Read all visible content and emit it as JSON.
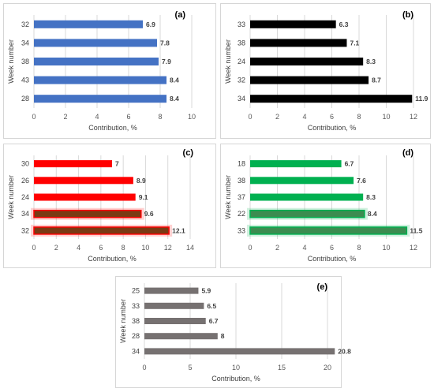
{
  "chart_data": [
    {
      "panel_label": "(a)",
      "type": "bar",
      "orientation": "horizontal",
      "categories": [
        "32",
        "34",
        "38",
        "43",
        "28"
      ],
      "values": [
        6.9,
        7.8,
        7.9,
        8.4,
        8.4
      ],
      "value_labels": [
        "6.9",
        "7.8",
        "7.9",
        "8.4",
        "8.4"
      ],
      "xlabel": "Contribution, %",
      "ylabel": "Week number",
      "xlim": [
        0,
        10
      ],
      "xticks": [
        "0",
        "2",
        "4",
        "6",
        "8",
        "10"
      ],
      "color": "#4472c4",
      "grid": "vertical"
    },
    {
      "panel_label": "(b)",
      "type": "bar",
      "orientation": "horizontal",
      "categories": [
        "33",
        "38",
        "24",
        "32",
        "34"
      ],
      "values": [
        6.3,
        7.1,
        8.3,
        8.7,
        11.9
      ],
      "value_labels": [
        "6.3",
        "7.1",
        "8.3",
        "8.7",
        "11.9"
      ],
      "xlabel": "Contribution, %",
      "ylabel": "Week number",
      "xlim": [
        0,
        12
      ],
      "xticks": [
        "0",
        "2",
        "4",
        "6",
        "8",
        "10",
        "12"
      ],
      "color": "#000000",
      "grid": "vertical"
    },
    {
      "panel_label": "(c)",
      "type": "bar",
      "orientation": "horizontal",
      "categories": [
        "30",
        "26",
        "24",
        "34",
        "32"
      ],
      "values": [
        7,
        8.9,
        9.1,
        9.6,
        12.1
      ],
      "value_labels": [
        "7",
        "8.9",
        "9.1",
        "9.6",
        "12.1"
      ],
      "xlabel": "Contribution, %",
      "ylabel": "Week number",
      "xlim": [
        0,
        14
      ],
      "xticks": [
        "0",
        "2",
        "4",
        "6",
        "8",
        "10",
        "12",
        "14"
      ],
      "color": "#ff0000",
      "highlight_color": "#7a3a14",
      "highlight_bars": [
        3,
        4
      ],
      "grid": "vertical"
    },
    {
      "panel_label": "(d)",
      "type": "bar",
      "orientation": "horizontal",
      "categories": [
        "18",
        "38",
        "37",
        "22",
        "33"
      ],
      "values": [
        6.7,
        7.6,
        8.3,
        8.4,
        11.5
      ],
      "value_labels": [
        "6.7",
        "7.6",
        "8.3",
        "8.4",
        "11.5"
      ],
      "xlabel": "Contribution, %",
      "ylabel": "Week number",
      "xlim": [
        0,
        12
      ],
      "xticks": [
        "0",
        "2",
        "4",
        "6",
        "8",
        "10",
        "12"
      ],
      "color": "#00b050",
      "highlight_color": "#3c8c50",
      "highlight_bars": [
        3,
        4
      ],
      "grid": "vertical"
    },
    {
      "panel_label": "(e)",
      "type": "bar",
      "orientation": "horizontal",
      "categories": [
        "25",
        "33",
        "38",
        "28",
        "34"
      ],
      "values": [
        5.9,
        6.5,
        6.7,
        8,
        20.8
      ],
      "value_labels": [
        "5.9",
        "6.5",
        "6.7",
        "8",
        "20.8"
      ],
      "xlabel": "Contribution, %",
      "ylabel": "Week number",
      "xlim": [
        0,
        20
      ],
      "xticks": [
        "0",
        "5",
        "10",
        "15",
        "20"
      ],
      "color": "#767171",
      "grid": "vertical"
    }
  ]
}
